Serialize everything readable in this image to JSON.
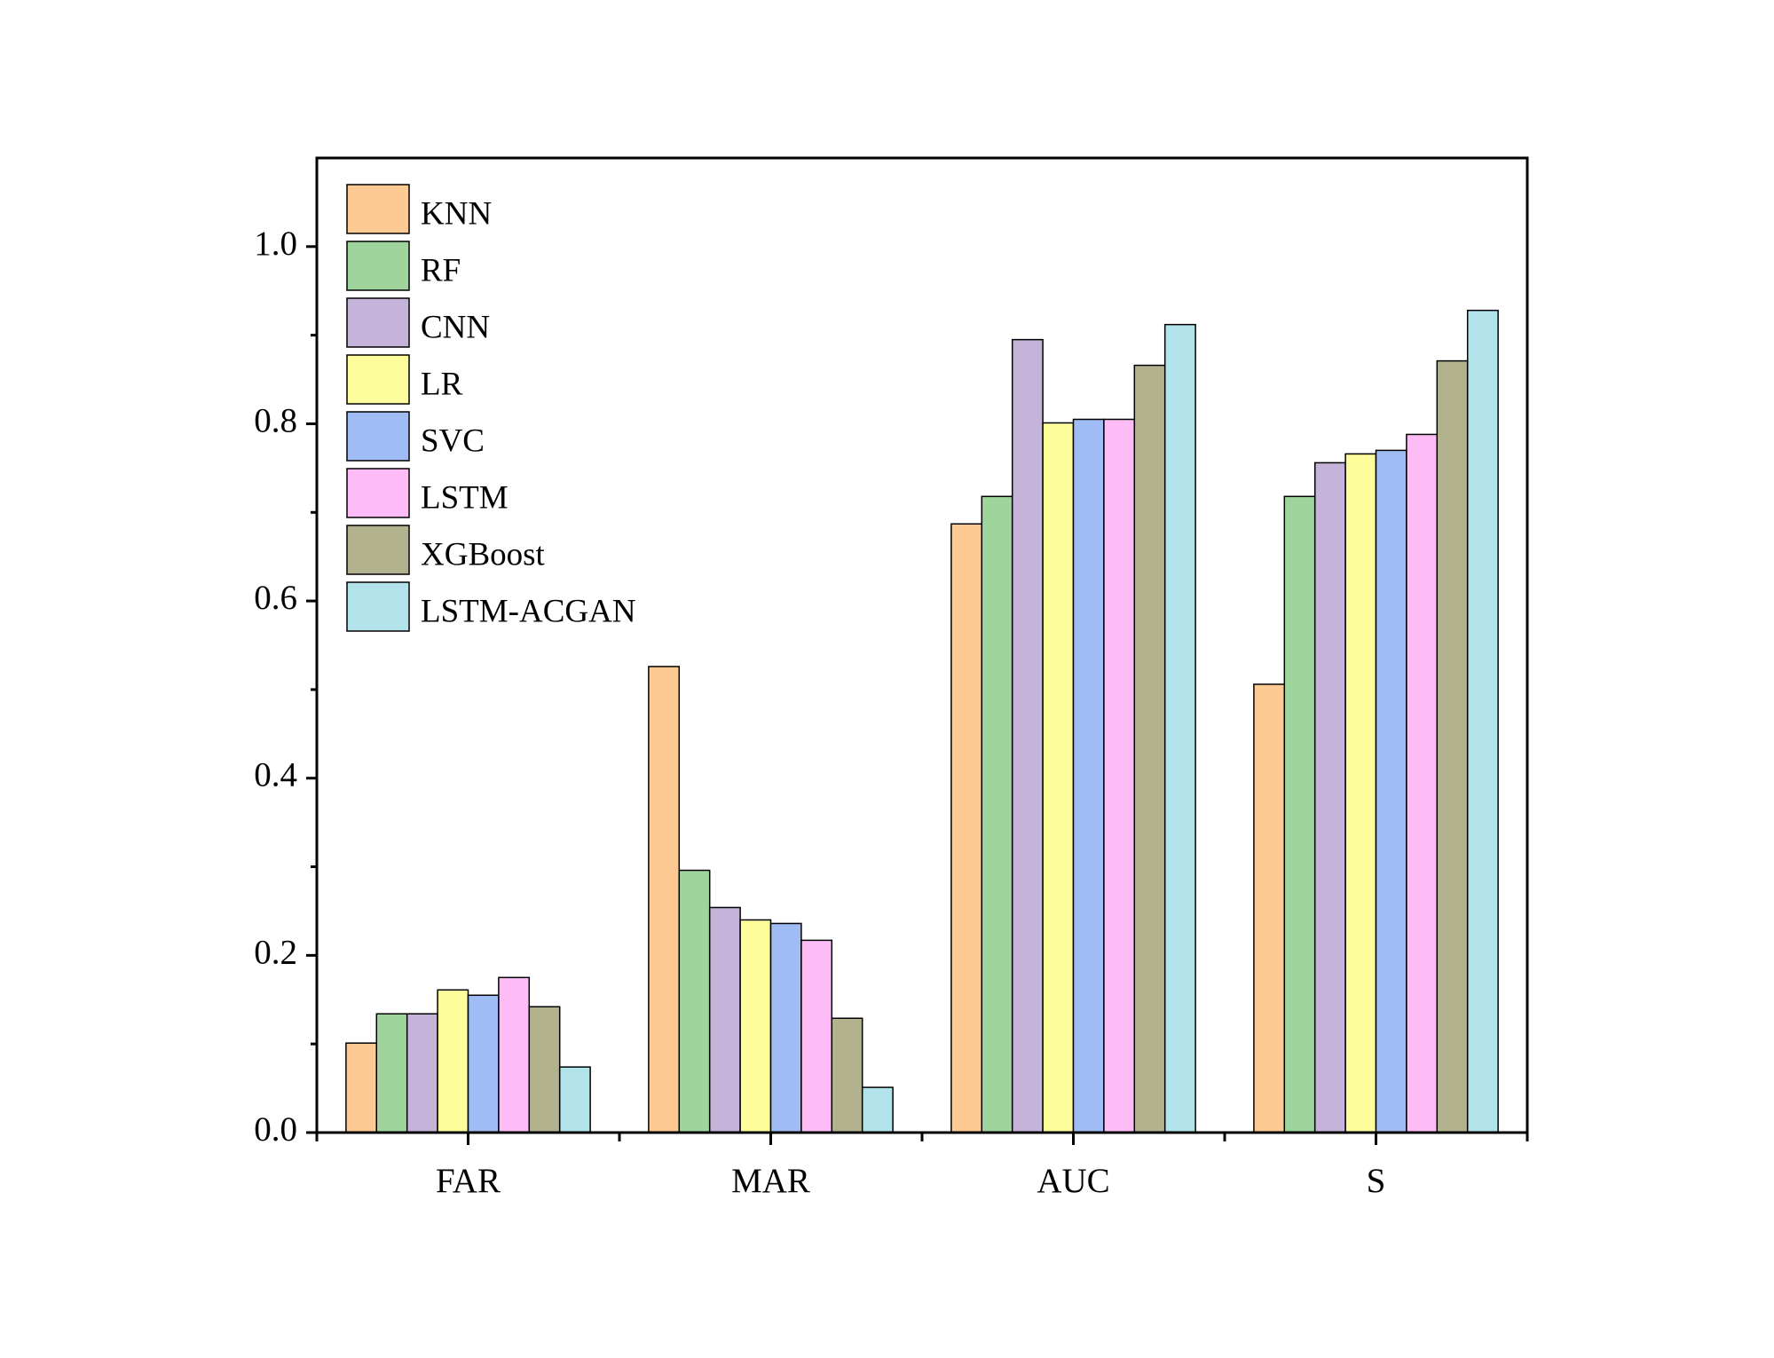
{
  "chart_data": {
    "type": "bar",
    "categories": [
      "FAR",
      "MAR",
      "AUC",
      "S"
    ],
    "series": [
      {
        "name": "KNN",
        "color": "#fdca93",
        "values": [
          0.101,
          0.526,
          0.687,
          0.506
        ]
      },
      {
        "name": "RF",
        "color": "#9fd59d",
        "values": [
          0.134,
          0.296,
          0.718,
          0.718
        ]
      },
      {
        "name": "CNN",
        "color": "#c5b3d9",
        "values": [
          0.134,
          0.254,
          0.895,
          0.756
        ]
      },
      {
        "name": "LR",
        "color": "#fdfd9b",
        "values": [
          0.161,
          0.24,
          0.801,
          0.766
        ]
      },
      {
        "name": "SVC",
        "color": "#9fbcf5",
        "values": [
          0.155,
          0.236,
          0.805,
          0.77
        ]
      },
      {
        "name": "LSTM",
        "color": "#fdbcf5",
        "values": [
          0.175,
          0.217,
          0.805,
          0.788
        ]
      },
      {
        "name": "XGBoost",
        "color": "#b2b38e",
        "values": [
          0.142,
          0.129,
          0.866,
          0.871
        ]
      },
      {
        "name": "LSTM-ACGAN",
        "color": "#b3e3ea",
        "values": [
          0.074,
          0.051,
          0.912,
          0.928
        ]
      }
    ],
    "ylim": [
      0,
      1.1
    ],
    "yticks": [
      {
        "value": 0,
        "label": "0.0"
      },
      0.2,
      0.4,
      0.6,
      0.8,
      {
        "value": 1,
        "label": "1.0"
      }
    ],
    "minor_yticks": [
      0.1,
      0.3,
      0.5,
      0.7,
      0.9
    ],
    "legend": "upper left"
  }
}
